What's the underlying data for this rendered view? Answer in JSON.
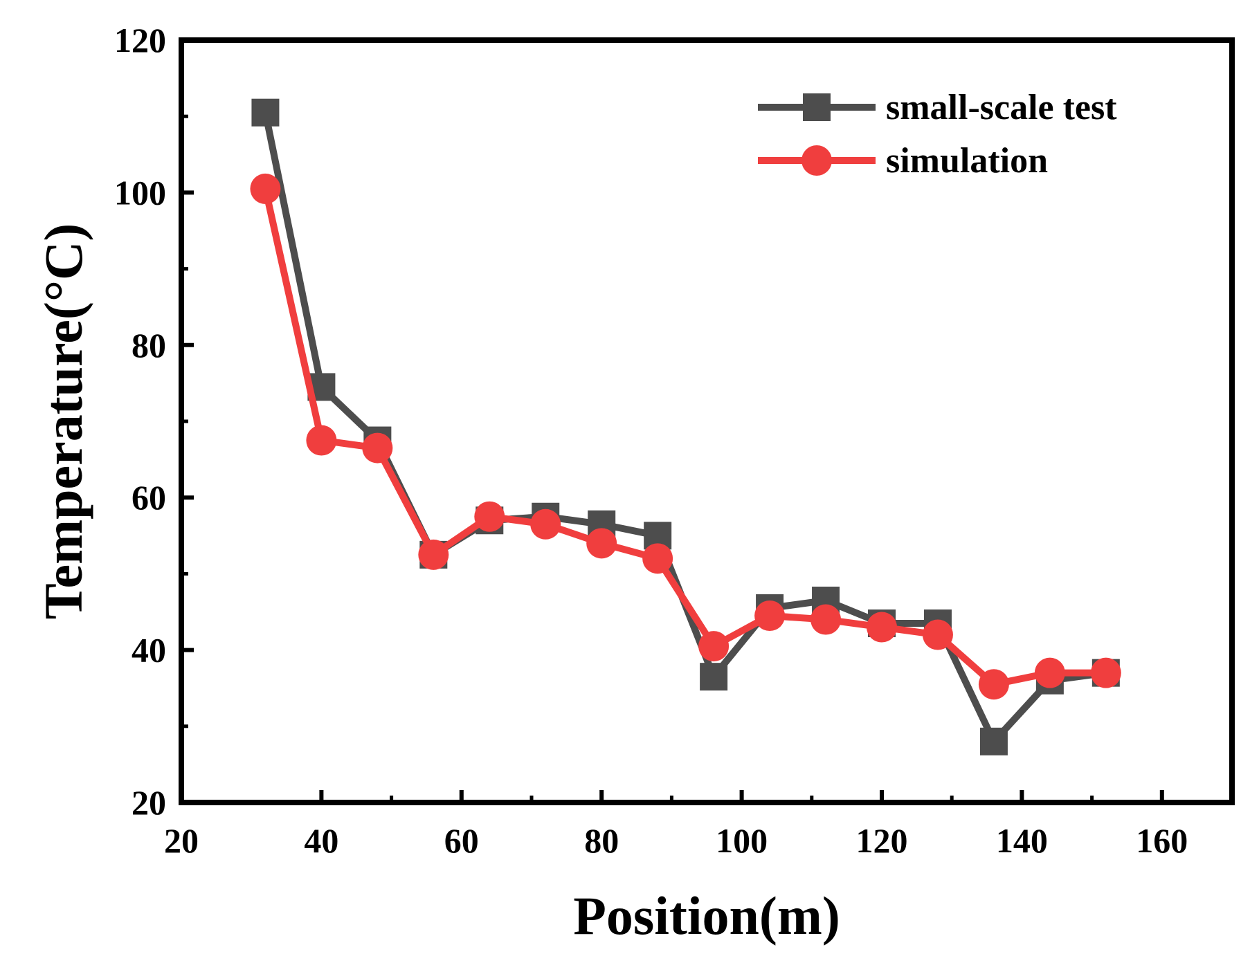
{
  "chart_data": {
    "type": "line",
    "title": "",
    "xlabel": "Position(m)",
    "ylabel": "Temperature(°C)",
    "xlim": [
      20,
      170
    ],
    "ylim": [
      20,
      120
    ],
    "xticks": [
      20,
      40,
      60,
      80,
      100,
      120,
      140,
      160
    ],
    "yticks": [
      20,
      40,
      60,
      80,
      100,
      120
    ],
    "grid": false,
    "legend_position": "top-right",
    "series": [
      {
        "name": "small-scale test",
        "color": "#4d4d4d",
        "marker": "square",
        "x": [
          32,
          40,
          48,
          56,
          64,
          72,
          80,
          88,
          96,
          104,
          112,
          120,
          128,
          136,
          144,
          152
        ],
        "y": [
          110.5,
          74.5,
          67.5,
          52.5,
          57,
          57.5,
          56.5,
          55,
          36.5,
          45.5,
          46.5,
          43.5,
          43.5,
          28,
          36,
          37
        ]
      },
      {
        "name": "simulation",
        "color": "#f03e3e",
        "marker": "circle",
        "x": [
          32,
          40,
          48,
          56,
          64,
          72,
          80,
          88,
          96,
          104,
          112,
          120,
          128,
          136,
          144,
          152
        ],
        "y": [
          100.5,
          67.5,
          66.5,
          52.5,
          57.5,
          56.5,
          54,
          52,
          40.5,
          44.5,
          44,
          43,
          42,
          35.5,
          37,
          37
        ]
      }
    ]
  }
}
